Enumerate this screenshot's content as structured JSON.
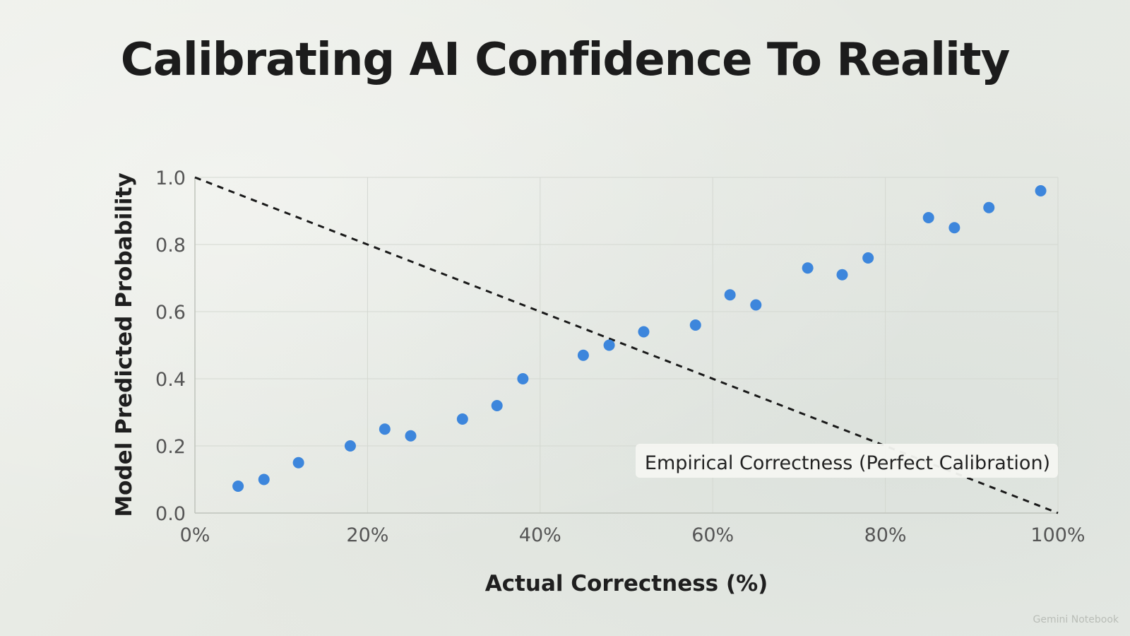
{
  "title": "Calibrating AI Confidence To Reality",
  "watermark": "Gemini Notebook",
  "colors": {
    "points": "#3d86dc",
    "diagonal": "#1a1a1a",
    "background": "#e9ece6"
  },
  "chart_data": {
    "type": "scatter",
    "title": "Calibrating AI Confidence To Reality",
    "xlabel": "Actual Correctness (%)",
    "ylabel": "Model Predicted Probability",
    "xlim": [
      0,
      100
    ],
    "ylim": [
      0,
      1.0
    ],
    "x_ticks": [
      "0%",
      "20%",
      "40%",
      "60%",
      "80%",
      "100%"
    ],
    "x_tick_values": [
      0,
      20,
      40,
      60,
      80,
      100
    ],
    "y_ticks": [
      "0.0",
      "0.2",
      "0.4",
      "0.6",
      "0.8",
      "1.0"
    ],
    "y_tick_values": [
      0,
      0.2,
      0.4,
      0.6,
      0.8,
      1.0
    ],
    "grid": true,
    "series": [
      {
        "x": [
          5,
          8,
          12,
          18,
          22,
          25,
          31,
          35,
          38,
          45,
          48,
          52,
          58,
          62,
          65,
          71,
          75,
          78,
          85,
          88,
          92,
          98
        ],
        "y": [
          0.08,
          0.1,
          0.15,
          0.2,
          0.25,
          0.23,
          0.28,
          0.32,
          0.4,
          0.47,
          0.5,
          0.54,
          0.56,
          0.65,
          0.62,
          0.73,
          0.71,
          0.76,
          0.88,
          0.85,
          0.91,
          0.96
        ]
      }
    ],
    "reference_line": {
      "style": "dashed",
      "x": [
        0,
        100
      ],
      "y": [
        1.0,
        0.0
      ],
      "label": "Empirical Correctness (Perfect Calibration)"
    }
  }
}
